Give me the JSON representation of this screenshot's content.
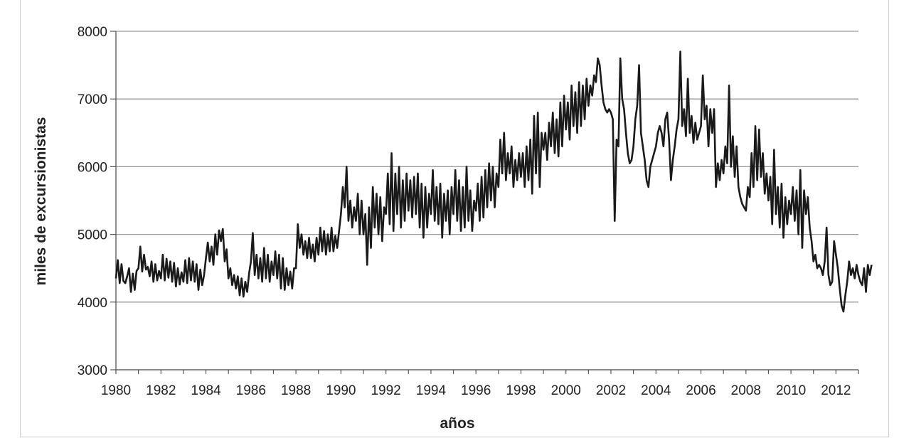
{
  "chart_data": {
    "type": "line",
    "title": "",
    "xlabel": "años",
    "ylabel": "miles de excursionistas",
    "xlim": [
      1980,
      2013
    ],
    "ylim": [
      3000,
      8000
    ],
    "grid": true,
    "x_tick_labels": [
      "1980",
      "1982",
      "1984",
      "1986",
      "1988",
      "1990",
      "1992",
      "1994",
      "1996",
      "1998",
      "2000",
      "2002",
      "2004",
      "2006",
      "2008",
      "2010",
      "2012"
    ],
    "y_tick_labels": [
      "3000",
      "4000",
      "5000",
      "6000",
      "7000",
      "8000"
    ],
    "series": [
      {
        "line_color": "#1a1a1a",
        "values": [
          4350,
          4620,
          4280,
          4560,
          4310,
          4280,
          4380,
          4500,
          4150,
          4420,
          4180,
          4460,
          4500,
          4820,
          4450,
          4700,
          4480,
          4520,
          4380,
          4600,
          4300,
          4560,
          4320,
          4460,
          4350,
          4700,
          4320,
          4640,
          4360,
          4600,
          4300,
          4580,
          4230,
          4500,
          4260,
          4440,
          4300,
          4620,
          4280,
          4650,
          4320,
          4600,
          4300,
          4560,
          4180,
          4480,
          4250,
          4400,
          4650,
          4880,
          4600,
          4820,
          4550,
          5000,
          4700,
          5060,
          4900,
          5080,
          4600,
          4780,
          4350,
          4500,
          4250,
          4400,
          4200,
          4380,
          4100,
          4350,
          4080,
          4300,
          4150,
          4420,
          4600,
          5020,
          4400,
          4700,
          4350,
          4650,
          4300,
          4800,
          4350,
          4700,
          4300,
          4600,
          4400,
          4750,
          4350,
          4700,
          4200,
          4650,
          4180,
          4500,
          4250,
          4450,
          4200,
          4500,
          4500,
          5150,
          4800,
          5000,
          4700,
          4900,
          4650,
          4950,
          4650,
          4850,
          4600,
          4950,
          4700,
          5100,
          4750,
          5050,
          4700,
          5000,
          4750,
          5100,
          4750,
          4980,
          4800,
          5050,
          5300,
          5700,
          5400,
          6000,
          5200,
          5500,
          5100,
          5400,
          5200,
          5600,
          5000,
          5500,
          5000,
          5300,
          4550,
          5400,
          4800,
          5700,
          5100,
          5600,
          5000,
          5550,
          4900,
          5400,
          5300,
          5900,
          5150,
          6200,
          5050,
          5900,
          5300,
          6000,
          5100,
          5800,
          5200,
          5900,
          5350,
          5800,
          5250,
          5850,
          5300,
          5900,
          5100,
          5750,
          4950,
          5700,
          5100,
          5600,
          5300,
          5950,
          5200,
          5700,
          5150,
          5750,
          4950,
          5600,
          5200,
          5650,
          5000,
          5700,
          5300,
          5950,
          5200,
          5800,
          5050,
          5700,
          5100,
          6000,
          5200,
          5650,
          5050,
          5500,
          5350,
          5750,
          5200,
          5850,
          5250,
          5950,
          5400,
          6050,
          5500,
          6000,
          5400,
          5900,
          5700,
          6400,
          5900,
          6500,
          5800,
          6200,
          5900,
          6300,
          5700,
          6100,
          5800,
          6200,
          5850,
          6200,
          5700,
          6300,
          5800,
          6400,
          5600,
          6750,
          5900,
          6800,
          5700,
          6500,
          6250,
          6500,
          6100,
          6650,
          6300,
          6800,
          6200,
          6700,
          6150,
          6950,
          6300,
          7050,
          6550,
          6950,
          6400,
          7200,
          6600,
          7100,
          6500,
          7250,
          6600,
          7200,
          6700,
          7300,
          6900,
          7200,
          7050,
          7350,
          7250,
          7600,
          7500,
          7200,
          6950,
          6850,
          6800,
          6850,
          6800,
          6700,
          5200,
          6400,
          6300,
          7600,
          7000,
          6850,
          6500,
          6200,
          6050,
          6100,
          6300,
          6700,
          6900,
          7500,
          6500,
          6300,
          6100,
          5800,
          5700,
          6000,
          6100,
          6200,
          6300,
          6500,
          6600,
          6500,
          6300,
          6700,
          6800,
          6400,
          5800,
          6100,
          6300,
          6550,
          6700,
          7700,
          6600,
          6850,
          6450,
          7300,
          6500,
          6750,
          6350,
          6650,
          6400,
          6500,
          6600,
          7350,
          6700,
          6900,
          6300,
          6850,
          6500,
          6850,
          5700,
          6050,
          5800,
          6100,
          5900,
          6300,
          6050,
          7200,
          6000,
          6450,
          5850,
          6300,
          5700,
          5550,
          5450,
          5400,
          5350,
          5700,
          5550,
          6200,
          5700,
          6600,
          5800,
          6550,
          5850,
          6200,
          5600,
          5900,
          5500,
          5850,
          5150,
          6250,
          5300,
          5700,
          5100,
          5750,
          4950,
          5550,
          5150,
          5500,
          5300,
          5700,
          5200,
          5650,
          5000,
          5950,
          4800,
          5650,
          5300,
          5550,
          5100,
          4900,
          4600,
          4700,
          4500,
          4550,
          4500,
          4400,
          4600,
          5100,
          4400,
          4250,
          4300,
          4900,
          4700,
          4500,
          4200,
          3950,
          3860,
          4100,
          4300,
          4600,
          4400,
          4500,
          4350,
          4550,
          4400,
          4300,
          4250,
          4500,
          4150,
          4550,
          4400,
          4550
        ]
      }
    ]
  }
}
